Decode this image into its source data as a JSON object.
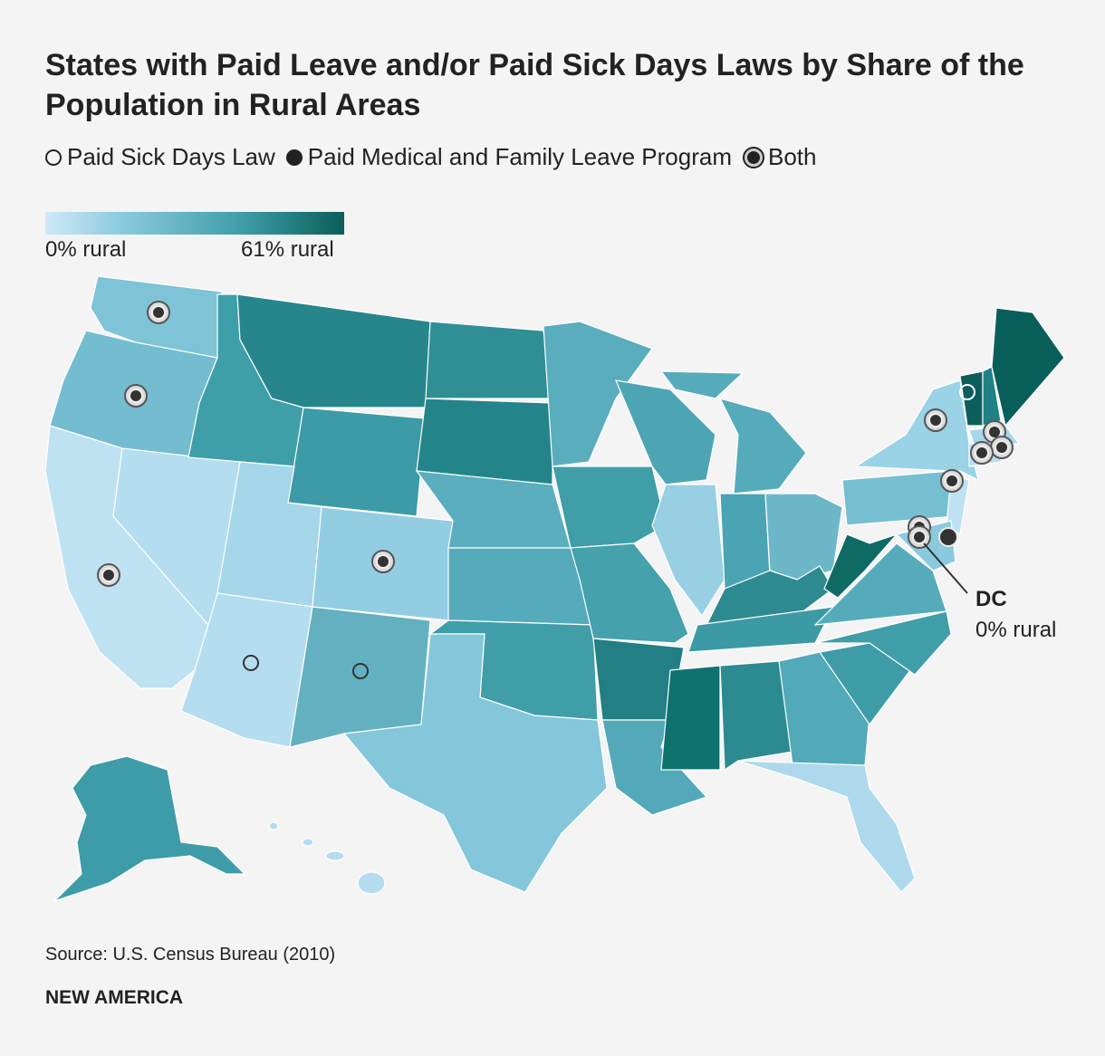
{
  "title": "States with Paid Leave and/or Paid Sick Days Laws by Share of the Population in Rural Areas",
  "legend": [
    "Paid Sick Days Law",
    "Paid Medical and Family Leave Program",
    "Both"
  ],
  "scale": {
    "min_label": "0% rural",
    "max_label": "61% rural"
  },
  "annotation": {
    "label": "DC",
    "text": "0% rural"
  },
  "source": "Source: U.S. Census Bureau (2010)",
  "brand": "NEW AMERICA"
}
